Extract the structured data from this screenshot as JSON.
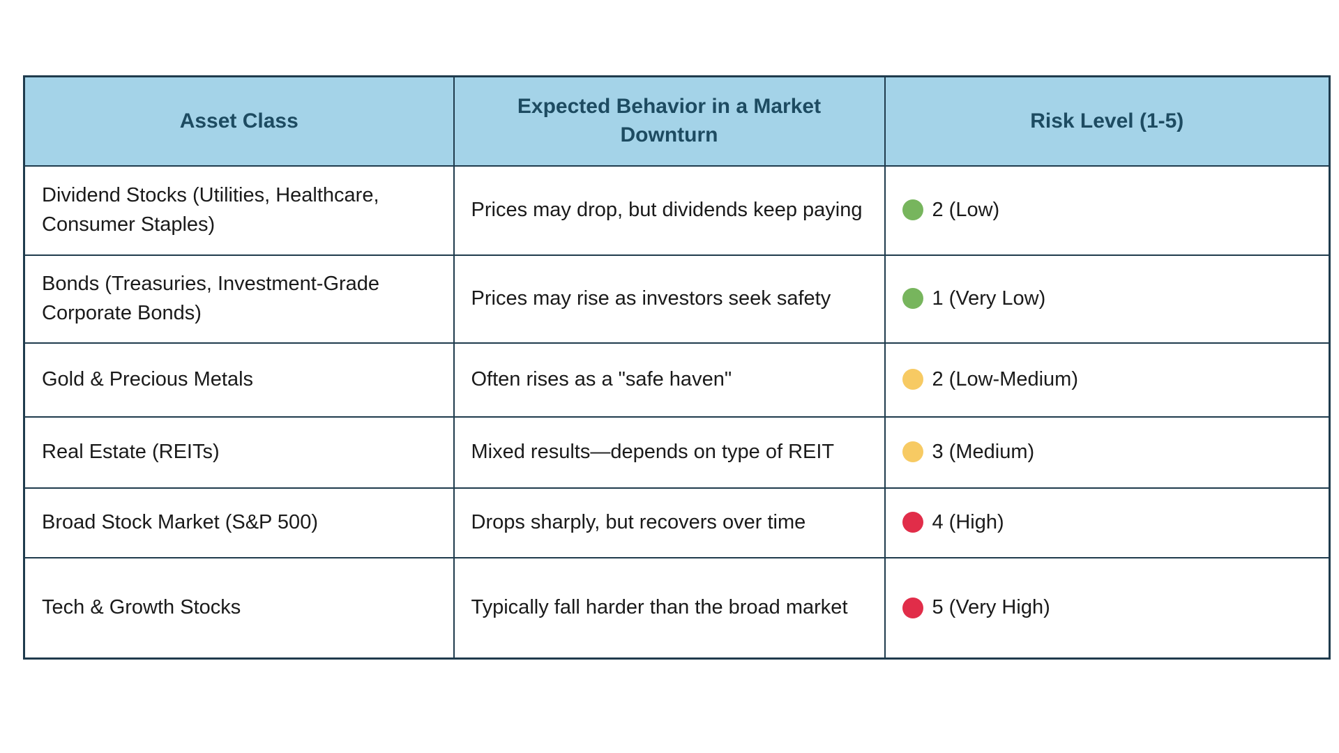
{
  "table": {
    "colors": {
      "header_bg": "#a4d3e8",
      "header_text": "#1d4b61",
      "border": "#1f3b4d",
      "risk_green": "#77b55d",
      "risk_yellow": "#f7ca63",
      "risk_red": "#e12d49"
    },
    "headers": {
      "asset_class": "Asset Class",
      "behavior": "Expected Behavior in a Market Downturn",
      "risk_level": "Risk Level (1-5)"
    },
    "rows": [
      {
        "asset": "Dividend Stocks (Utilities, Healthcare, Consumer Staples)",
        "behavior": "Prices may drop, but dividends keep paying",
        "risk_label": "2 (Low)",
        "risk_color": "#77b55d",
        "risk_dot": "green-dot"
      },
      {
        "asset": "Bonds (Treasuries, Investment-Grade Corporate Bonds)",
        "behavior": "Prices may rise as investors seek safety",
        "risk_label": "1 (Very Low)",
        "risk_color": "#77b55d",
        "risk_dot": "green-dot"
      },
      {
        "asset": "Gold & Precious Metals",
        "behavior": "Often rises as a \"safe haven\"",
        "risk_label": "2 (Low-Medium)",
        "risk_color": "#f7ca63",
        "risk_dot": "yellow-dot"
      },
      {
        "asset": "Real Estate (REITs)",
        "behavior": "Mixed results—depends on type of REIT",
        "risk_label": "3 (Medium)",
        "risk_color": "#f7ca63",
        "risk_dot": "yellow-dot"
      },
      {
        "asset": "Broad Stock Market (S&P 500)",
        "behavior": "Drops sharply, but recovers over time",
        "risk_label": "4 (High)",
        "risk_color": "#e12d49",
        "risk_dot": "red-dot"
      },
      {
        "asset": "Tech & Growth Stocks",
        "behavior": "Typically fall harder than the broad market",
        "risk_label": "5 (Very High)",
        "risk_color": "#e12d49",
        "risk_dot": "red-dot"
      }
    ]
  }
}
